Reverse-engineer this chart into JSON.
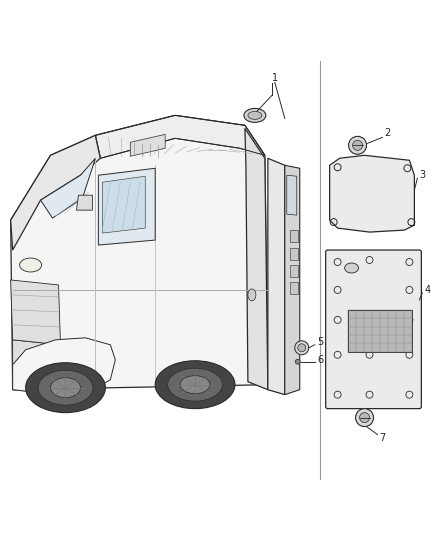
{
  "bg_color": "#ffffff",
  "line_color": "#2a2a2a",
  "fig_width": 4.38,
  "fig_height": 5.33,
  "dpi": 100,
  "van": {
    "body_color": "#f5f5f5",
    "roof_color": "#eeeeee",
    "dark_color": "#cccccc",
    "wheel_color": "#444444",
    "glass_color": "#e0e8f0"
  },
  "panels": {
    "color": "#ebebeb",
    "border_color": "#2a2a2a"
  },
  "label_fontsize": 7,
  "label_color": "#222222"
}
